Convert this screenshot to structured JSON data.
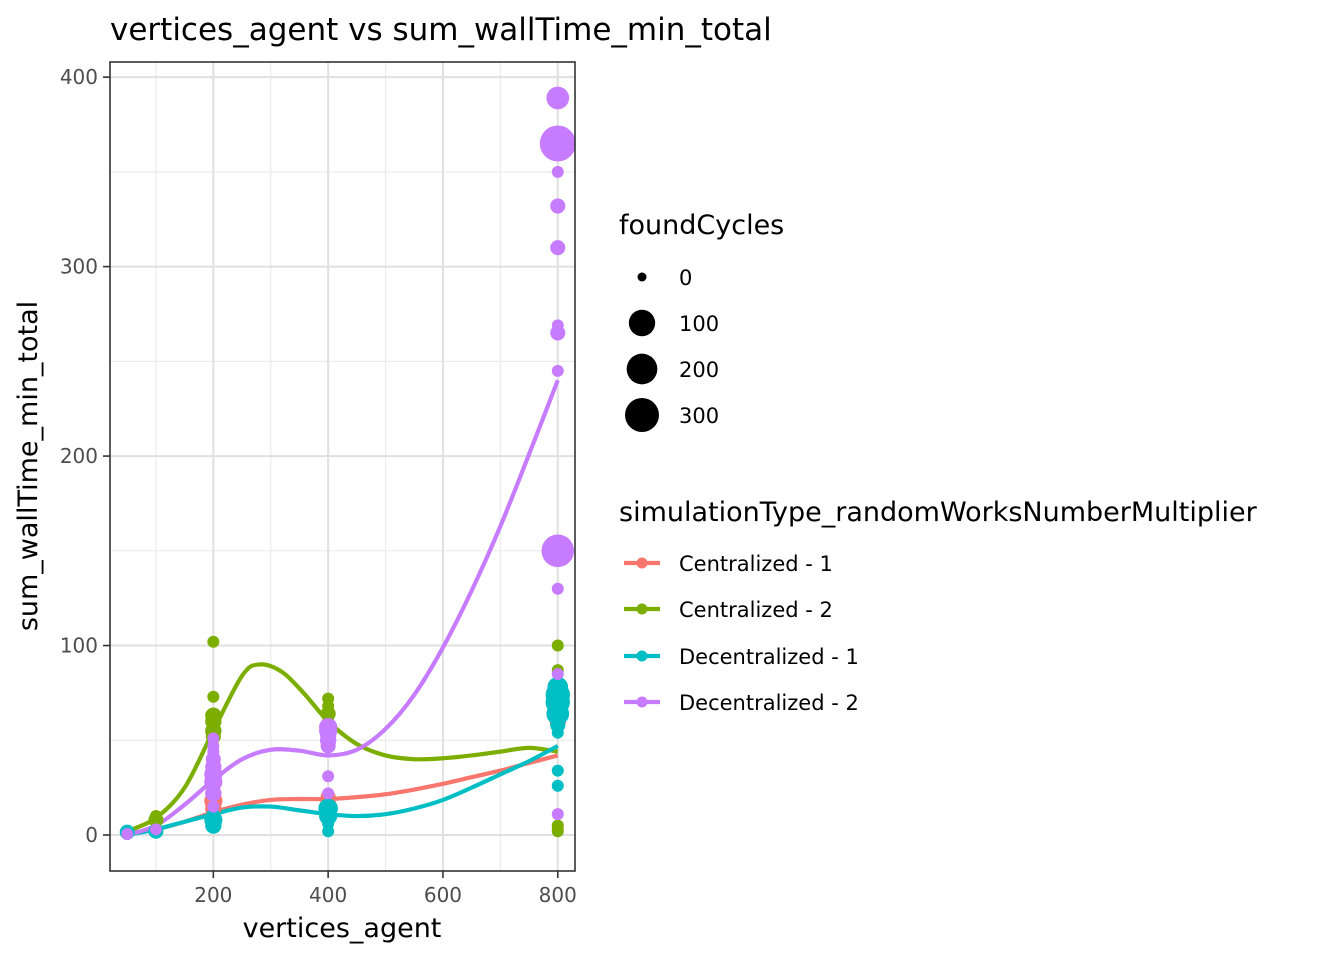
{
  "chart_data": {
    "type": "scatter",
    "title": "vertices_agent  vs  sum_wallTime_min_total",
    "xlabel": "vertices_agent",
    "ylabel": "sum_wallTime_min_total",
    "xlim": [
      20,
      830
    ],
    "ylim": [
      -19,
      408
    ],
    "x_ticks": [
      200,
      400,
      600,
      800
    ],
    "y_ticks": [
      0,
      100,
      200,
      300,
      400
    ],
    "grid": true,
    "size_legend": {
      "title": "foundCycles",
      "entries": [
        {
          "label": "0",
          "value": 0
        },
        {
          "label": "100",
          "value": 100
        },
        {
          "label": "200",
          "value": 200
        },
        {
          "label": "300",
          "value": 300
        }
      ]
    },
    "color_legend": {
      "title": "simulationType_randomWorksNumberMultiplier",
      "placement": "right"
    },
    "series": [
      {
        "name": "Centralized - 1",
        "color": "#F8766D",
        "points": [
          [
            50,
            0.5,
            0
          ],
          [
            100,
            3,
            0
          ],
          [
            200,
            8,
            5
          ],
          [
            200,
            14,
            10
          ],
          [
            200,
            18,
            20
          ],
          [
            200,
            22,
            5
          ],
          [
            400,
            12,
            5
          ],
          [
            400,
            16,
            10
          ],
          [
            400,
            20,
            5
          ],
          [
            800,
            3,
            0
          ],
          [
            800,
            60,
            10
          ],
          [
            800,
            65,
            20
          ],
          [
            800,
            68,
            5
          ]
        ],
        "smooth": [
          [
            50,
            1
          ],
          [
            100,
            3
          ],
          [
            150,
            7
          ],
          [
            200,
            12
          ],
          [
            250,
            16
          ],
          [
            300,
            18.5
          ],
          [
            350,
            19
          ],
          [
            400,
            19
          ],
          [
            450,
            20
          ],
          [
            500,
            21.5
          ],
          [
            550,
            24
          ],
          [
            600,
            27
          ],
          [
            650,
            30.5
          ],
          [
            700,
            34
          ],
          [
            750,
            38
          ],
          [
            800,
            42
          ]
        ]
      },
      {
        "name": "Centralized - 2",
        "color": "#7CAE00",
        "points": [
          [
            50,
            1,
            0
          ],
          [
            100,
            8,
            5
          ],
          [
            100,
            10,
            0
          ],
          [
            200,
            102,
            0
          ],
          [
            200,
            73,
            0
          ],
          [
            200,
            63,
            10
          ],
          [
            200,
            60,
            10
          ],
          [
            200,
            55,
            10
          ],
          [
            200,
            52,
            5
          ],
          [
            400,
            72,
            0
          ],
          [
            400,
            68,
            0
          ],
          [
            400,
            64,
            5
          ],
          [
            400,
            60,
            0
          ],
          [
            800,
            100,
            0
          ],
          [
            800,
            87,
            0
          ],
          [
            800,
            74,
            0
          ],
          [
            800,
            68,
            0
          ],
          [
            800,
            5,
            0
          ],
          [
            800,
            2,
            0
          ]
        ],
        "smooth": [
          [
            50,
            2
          ],
          [
            100,
            9
          ],
          [
            150,
            25
          ],
          [
            200,
            55
          ],
          [
            250,
            84
          ],
          [
            280,
            90
          ],
          [
            320,
            86
          ],
          [
            360,
            74
          ],
          [
            400,
            60
          ],
          [
            450,
            48
          ],
          [
            500,
            42
          ],
          [
            550,
            40
          ],
          [
            600,
            40.5
          ],
          [
            650,
            42
          ],
          [
            700,
            44
          ],
          [
            750,
            46
          ],
          [
            800,
            44
          ]
        ]
      },
      {
        "name": "Decentralized - 1",
        "color": "#00BFC4",
        "points": [
          [
            50,
            0.5,
            0
          ],
          [
            50,
            1.5,
            5
          ],
          [
            100,
            2,
            5
          ],
          [
            200,
            5,
            10
          ],
          [
            200,
            8,
            20
          ],
          [
            200,
            10,
            5
          ],
          [
            400,
            2,
            0
          ],
          [
            400,
            6,
            0
          ],
          [
            400,
            10,
            20
          ],
          [
            400,
            14,
            30
          ],
          [
            800,
            26,
            0
          ],
          [
            800,
            34,
            0
          ],
          [
            800,
            54,
            0
          ],
          [
            800,
            58,
            5
          ],
          [
            800,
            64,
            60
          ],
          [
            800,
            70,
            80
          ],
          [
            800,
            74,
            80
          ],
          [
            800,
            78,
            40
          ]
        ],
        "smooth": [
          [
            50,
            0
          ],
          [
            100,
            3
          ],
          [
            150,
            7
          ],
          [
            200,
            11
          ],
          [
            250,
            14.5
          ],
          [
            300,
            15
          ],
          [
            350,
            13
          ],
          [
            400,
            11
          ],
          [
            450,
            10
          ],
          [
            500,
            11
          ],
          [
            550,
            14
          ],
          [
            600,
            18.5
          ],
          [
            650,
            25
          ],
          [
            700,
            32
          ],
          [
            750,
            39
          ],
          [
            800,
            47
          ]
        ]
      },
      {
        "name": "Decentralized - 2",
        "color": "#C77CFF",
        "points": [
          [
            50,
            0.5,
            0
          ],
          [
            100,
            3,
            0
          ],
          [
            200,
            15,
            0
          ],
          [
            200,
            22,
            10
          ],
          [
            200,
            28,
            20
          ],
          [
            200,
            32,
            20
          ],
          [
            200,
            36,
            10
          ],
          [
            200,
            40,
            5
          ],
          [
            200,
            44,
            0
          ],
          [
            200,
            47,
            0
          ],
          [
            200,
            51,
            0
          ],
          [
            400,
            22,
            0
          ],
          [
            400,
            31,
            0
          ],
          [
            400,
            47,
            5
          ],
          [
            400,
            50,
            10
          ],
          [
            400,
            53,
            10
          ],
          [
            400,
            55,
            20
          ],
          [
            400,
            57,
            20
          ],
          [
            800,
            389,
            60
          ],
          [
            800,
            365,
            300
          ],
          [
            800,
            350,
            0
          ],
          [
            800,
            332,
            5
          ],
          [
            800,
            310,
            5
          ],
          [
            800,
            269,
            0
          ],
          [
            800,
            265,
            5
          ],
          [
            800,
            245,
            0
          ],
          [
            800,
            150,
            220
          ],
          [
            800,
            130,
            0
          ],
          [
            800,
            85,
            0
          ],
          [
            800,
            11,
            0
          ]
        ],
        "smooth": [
          [
            50,
            0
          ],
          [
            100,
            5
          ],
          [
            150,
            16
          ],
          [
            200,
            29
          ],
          [
            250,
            40
          ],
          [
            300,
            45
          ],
          [
            350,
            44.5
          ],
          [
            400,
            42
          ],
          [
            450,
            45
          ],
          [
            500,
            56
          ],
          [
            550,
            74
          ],
          [
            600,
            99
          ],
          [
            650,
            129
          ],
          [
            700,
            163
          ],
          [
            750,
            201
          ],
          [
            800,
            240
          ]
        ]
      }
    ]
  }
}
